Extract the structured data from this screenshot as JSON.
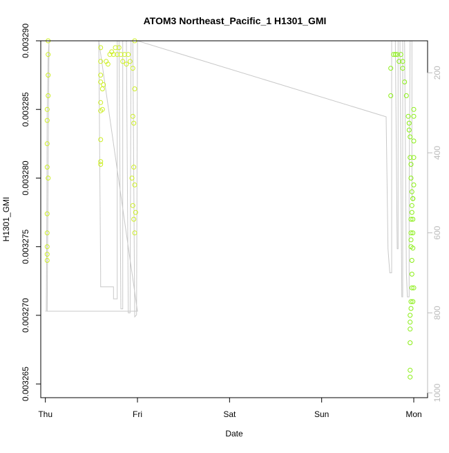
{
  "chart_data": {
    "type": "scatter",
    "title": "ATOM3 Northeast_Pacific_1 H1301_GMI",
    "xlabel": "Date",
    "ylabel": "H1301_GMI",
    "x_ticks": [
      "Thu",
      "Fri",
      "Sat",
      "Sun",
      "Mon"
    ],
    "x_range": [
      -0.05,
      4.15
    ],
    "y_ticks": [
      "0.003265",
      "0.003270",
      "0.003275",
      "0.003280",
      "0.003285",
      "0.003290"
    ],
    "y_tick_values": [
      0.003265,
      0.00327,
      0.003275,
      0.00328,
      0.003285,
      0.00329
    ],
    "ylim": [
      0.003264,
      0.00329
    ],
    "y2_ticks": [
      "200",
      "400",
      "600",
      "800",
      "1000"
    ],
    "y2_tick_values": [
      200,
      400,
      600,
      800,
      1000
    ],
    "y2lim": [
      1012,
      120
    ],
    "grid": false,
    "colors": {
      "marker_yellow": "#ccee22",
      "marker_green": "#88ee11",
      "profile_line": "#c8c8c8",
      "axis": "#000000",
      "secondary_axis": "#bbbbbb"
    },
    "series": [
      {
        "role": "H1301_GMI samples",
        "points": [
          [
            0.02,
            0.003276
          ],
          [
            0.02,
            0.003275
          ],
          [
            0.02,
            0.003274
          ],
          [
            0.02,
            0.00327445
          ],
          [
            0.02,
            0.0032808
          ],
          [
            0.02,
            0.0032842
          ],
          [
            0.02,
            0.003285
          ],
          [
            0.03,
            0.003286
          ],
          [
            0.03,
            0.0032875
          ],
          [
            0.03,
            0.003289
          ],
          [
            0.03,
            0.00329
          ],
          [
            0.03,
            0.00328
          ],
          [
            0.02,
            0.0032825
          ],
          [
            0.02,
            0.0032774
          ],
          [
            0.6,
            0.0032895
          ],
          [
            0.6,
            0.0032875
          ],
          [
            0.6,
            0.0032855
          ],
          [
            0.6,
            0.003287
          ],
          [
            0.6,
            0.0032849
          ],
          [
            0.6,
            0.0032828
          ],
          [
            0.6,
            0.003281
          ],
          [
            0.6,
            0.0032812
          ],
          [
            0.6,
            0.0032885
          ],
          [
            0.62,
            0.0032865
          ],
          [
            0.62,
            0.003285
          ],
          [
            0.63,
            0.0032868
          ],
          [
            0.66,
            0.0032885
          ],
          [
            0.68,
            0.0032883
          ],
          [
            0.7,
            0.003289
          ],
          [
            0.72,
            0.0032892
          ],
          [
            0.74,
            0.003289
          ],
          [
            0.76,
            0.0032895
          ],
          [
            0.78,
            0.003289
          ],
          [
            0.8,
            0.0032895
          ],
          [
            0.82,
            0.003289
          ],
          [
            0.84,
            0.0032885
          ],
          [
            0.86,
            0.003289
          ],
          [
            0.88,
            0.0032883
          ],
          [
            0.9,
            0.003289
          ],
          [
            0.92,
            0.0032885
          ],
          [
            0.94,
            0.00328
          ],
          [
            0.95,
            0.003278
          ],
          [
            0.96,
            0.003277
          ],
          [
            0.97,
            0.003276
          ],
          [
            0.97,
            0.0032795
          ],
          [
            0.96,
            0.0032808
          ],
          [
            0.95,
            0.0032845
          ],
          [
            0.96,
            0.003284
          ],
          [
            0.98,
            0.0032775
          ],
          [
            0.97,
            0.0032865
          ],
          [
            0.95,
            0.003288
          ],
          [
            0.97,
            0.00329
          ],
          [
            3.75,
            0.003286
          ],
          [
            3.75,
            0.003288
          ],
          [
            3.78,
            0.003289
          ],
          [
            3.8,
            0.003289
          ],
          [
            3.82,
            0.003289
          ],
          [
            3.84,
            0.0032885
          ],
          [
            3.86,
            0.003289
          ],
          [
            3.88,
            0.003288
          ],
          [
            3.88,
            0.0032885
          ],
          [
            3.9,
            0.003287
          ],
          [
            3.92,
            0.003286
          ],
          [
            3.94,
            0.0032845
          ],
          [
            3.95,
            0.003284
          ],
          [
            3.95,
            0.0032835
          ],
          [
            3.96,
            0.003283
          ],
          [
            3.96,
            0.0032815
          ],
          [
            3.97,
            0.003281
          ],
          [
            3.97,
            0.00328
          ],
          [
            3.98,
            0.003279
          ],
          [
            3.98,
            0.003278
          ],
          [
            3.98,
            0.0032775
          ],
          [
            3.97,
            0.003277
          ],
          [
            3.97,
            0.003276
          ],
          [
            3.97,
            0.0032755
          ],
          [
            3.97,
            0.003275
          ],
          [
            3.98,
            0.003274
          ],
          [
            3.98,
            0.003273
          ],
          [
            3.98,
            0.003272
          ],
          [
            3.97,
            0.003271
          ],
          [
            3.97,
            0.0032705
          ],
          [
            3.96,
            0.00327
          ],
          [
            3.96,
            0.0032695
          ],
          [
            3.96,
            0.003269
          ],
          [
            3.96,
            0.003268
          ],
          [
            3.96,
            0.003266
          ],
          [
            3.96,
            0.0032655
          ],
          [
            3.99,
            0.003276
          ],
          [
            3.99,
            0.0032785
          ],
          [
            3.99,
            0.003277
          ],
          [
            4.0,
            0.0032845
          ],
          [
            4.0,
            0.003285
          ],
          [
            4.0,
            0.0032827
          ],
          [
            4.0,
            0.0032795
          ],
          [
            3.99,
            0.0032785
          ],
          [
            3.99,
            0.0032749
          ],
          [
            4.0,
            0.003272
          ],
          [
            3.99,
            0.003271
          ],
          [
            4.0,
            0.0032815
          ]
        ]
      }
    ],
    "profile_line": {
      "role": "pressure profile (secondary axis)",
      "points": [
        [
          0.0,
          796
        ],
        [
          0.01,
          796
        ],
        [
          0.015,
          600
        ],
        [
          0.02,
          300
        ],
        [
          0.03,
          160
        ],
        [
          0.04,
          120
        ],
        [
          0.02,
          796
        ],
        [
          1.0,
          796
        ],
        [
          0.58,
          120
        ],
        [
          0.6,
          700
        ],
        [
          0.6,
          735
        ],
        [
          0.74,
          735
        ],
        [
          0.74,
          765
        ],
        [
          0.78,
          765
        ],
        [
          0.78,
          120
        ],
        [
          0.8,
          120
        ],
        [
          0.82,
          790
        ],
        [
          0.84,
          790
        ],
        [
          0.84,
          120
        ],
        [
          0.88,
          120
        ],
        [
          0.9,
          800
        ],
        [
          0.92,
          800
        ],
        [
          0.93,
          120
        ],
        [
          0.95,
          120
        ],
        [
          0.97,
          810
        ],
        [
          0.99,
          805
        ],
        [
          1.0,
          120
        ],
        [
          3.7,
          310
        ],
        [
          3.72,
          640
        ],
        [
          3.74,
          700
        ],
        [
          3.76,
          700
        ],
        [
          3.76,
          120
        ],
        [
          3.8,
          120
        ],
        [
          3.82,
          640
        ],
        [
          3.83,
          640
        ],
        [
          3.83,
          120
        ],
        [
          3.85,
          120
        ],
        [
          3.87,
          760
        ],
        [
          3.88,
          760
        ],
        [
          3.88,
          120
        ],
        [
          3.9,
          120
        ],
        [
          3.92,
          700
        ],
        [
          3.93,
          760
        ],
        [
          3.95,
          760
        ],
        [
          3.95,
          500
        ],
        [
          3.96,
          120
        ],
        [
          3.98,
          120
        ],
        [
          3.98,
          500
        ],
        [
          3.99,
          520
        ]
      ]
    }
  }
}
